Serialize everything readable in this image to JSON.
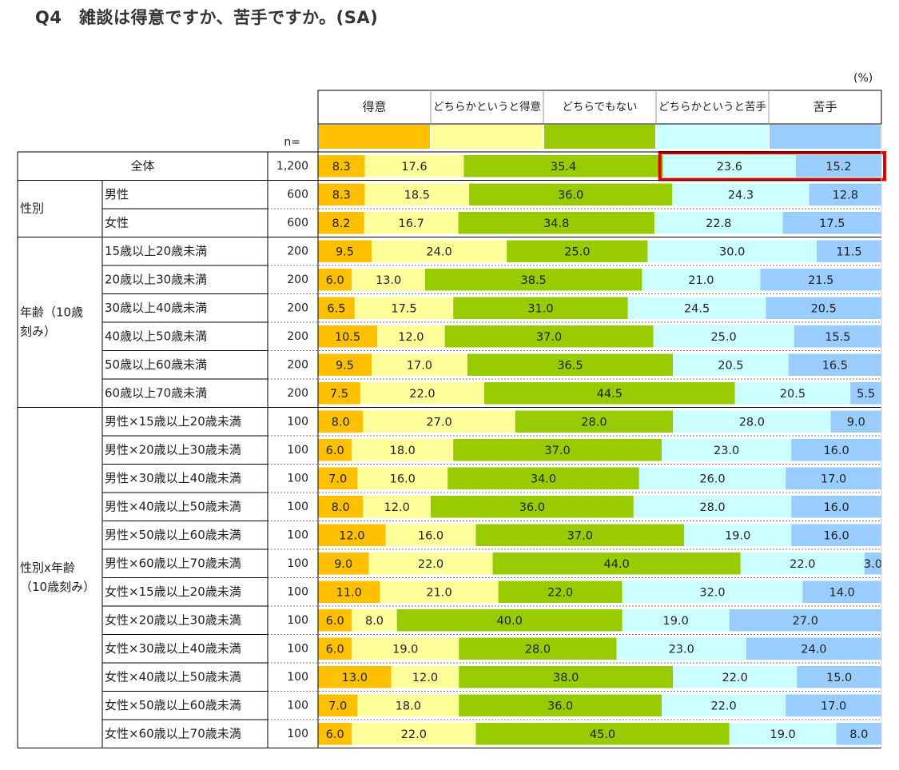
{
  "title": "Q4　雑談は得意ですか、苦手ですか。(SA)",
  "unit": "(%)",
  "n_label": "n=",
  "chart_data": {
    "type": "bar",
    "stacked": true,
    "orientation": "horizontal",
    "title": "Q4　雑談は得意ですか、苦手ですか。(SA)",
    "unit": "(%)",
    "xlim": [
      0,
      100
    ],
    "legend_position": "top",
    "series": [
      {
        "name": "得意",
        "color": "#FFC000"
      },
      {
        "name": "どちらかというと得意",
        "color": "#FFFF99"
      },
      {
        "name": "どちらでもない",
        "color": "#99CC00"
      },
      {
        "name": "どちらかというと苦手",
        "color": "#CCFFFF"
      },
      {
        "name": "苦手",
        "color": "#99CCFF"
      }
    ],
    "groups": [
      {
        "label": "",
        "rows": [
          {
            "label": "全体",
            "n": "1,200",
            "values": [
              8.3,
              17.6,
              35.4,
              23.6,
              15.2
            ],
            "labels": [
              "8.3",
              "17.6",
              "35.4",
              "23.6",
              "15.2"
            ],
            "highlight": true
          }
        ]
      },
      {
        "label": "性別",
        "rows": [
          {
            "label": "男性",
            "n": "600",
            "values": [
              8.3,
              18.5,
              36.0,
              24.3,
              12.8
            ],
            "labels": [
              "8.3",
              "18.5",
              "36.0",
              "24.3",
              "12.8"
            ]
          },
          {
            "label": "女性",
            "n": "600",
            "values": [
              8.2,
              16.7,
              34.8,
              22.8,
              17.5
            ],
            "labels": [
              "8.2",
              "16.7",
              "34.8",
              "22.8",
              "17.5"
            ]
          }
        ]
      },
      {
        "label": "年齢（10歳刻み）",
        "label_lines": [
          "年齢（10歳",
          "刻み）"
        ],
        "rows": [
          {
            "label": "15歳以上20歳未満",
            "n": "200",
            "values": [
              9.5,
              24.0,
              25.0,
              30.0,
              11.5
            ],
            "labels": [
              "9.5",
              "24.0",
              "25.0",
              "30.0",
              "11.5"
            ]
          },
          {
            "label": "20歳以上30歳未満",
            "n": "200",
            "values": [
              6.0,
              13.0,
              38.5,
              21.0,
              21.5
            ],
            "labels": [
              "6.0",
              "13.0",
              "38.5",
              "21.0",
              "21.5"
            ]
          },
          {
            "label": "30歳以上40歳未満",
            "n": "200",
            "values": [
              6.5,
              17.5,
              31.0,
              24.5,
              20.5
            ],
            "labels": [
              "6.5",
              "17.5",
              "31.0",
              "24.5",
              "20.5"
            ]
          },
          {
            "label": "40歳以上50歳未満",
            "n": "200",
            "values": [
              10.5,
              12.0,
              37.0,
              25.0,
              15.5
            ],
            "labels": [
              "10.5",
              "12.0",
              "37.0",
              "25.0",
              "15.5"
            ]
          },
          {
            "label": "50歳以上60歳未満",
            "n": "200",
            "values": [
              9.5,
              17.0,
              36.5,
              20.5,
              16.5
            ],
            "labels": [
              "9.5",
              "17.0",
              "36.5",
              "20.5",
              "16.5"
            ]
          },
          {
            "label": "60歳以上70歳未満",
            "n": "200",
            "values": [
              7.5,
              22.0,
              44.5,
              20.5,
              5.5
            ],
            "labels": [
              "7.5",
              "22.0",
              "44.5",
              "20.5",
              "5.5"
            ]
          }
        ]
      },
      {
        "label": "性別x年齢（10歳刻み）",
        "label_lines": [
          "性別x年齢",
          "（10歳刻み）"
        ],
        "rows": [
          {
            "label": "男性×15歳以上20歳未満",
            "n": "100",
            "values": [
              8.0,
              27.0,
              28.0,
              28.0,
              9.0
            ],
            "labels": [
              "8.0",
              "27.0",
              "28.0",
              "28.0",
              "9.0"
            ]
          },
          {
            "label": "男性×20歳以上30歳未満",
            "n": "100",
            "values": [
              6.0,
              18.0,
              37.0,
              23.0,
              16.0
            ],
            "labels": [
              "6.0",
              "18.0",
              "37.0",
              "23.0",
              "16.0"
            ]
          },
          {
            "label": "男性×30歳以上40歳未満",
            "n": "100",
            "values": [
              7.0,
              16.0,
              34.0,
              26.0,
              17.0
            ],
            "labels": [
              "7.0",
              "16.0",
              "34.0",
              "26.0",
              "17.0"
            ]
          },
          {
            "label": "男性×40歳以上50歳未満",
            "n": "100",
            "values": [
              8.0,
              12.0,
              36.0,
              28.0,
              16.0
            ],
            "labels": [
              "8.0",
              "12.0",
              "36.0",
              "28.0",
              "16.0"
            ]
          },
          {
            "label": "男性×50歳以上60歳未満",
            "n": "100",
            "values": [
              12.0,
              16.0,
              37.0,
              19.0,
              16.0
            ],
            "labels": [
              "12.0",
              "16.0",
              "37.0",
              "19.0",
              "16.0"
            ]
          },
          {
            "label": "男性×60歳以上70歳未満",
            "n": "100",
            "values": [
              9.0,
              22.0,
              44.0,
              22.0,
              3.0
            ],
            "labels": [
              "9.0",
              "22.0",
              "44.0",
              "22.0",
              "3.0"
            ]
          },
          {
            "label": "女性×15歳以上20歳未満",
            "n": "100",
            "values": [
              11.0,
              21.0,
              22.0,
              32.0,
              14.0
            ],
            "labels": [
              "11.0",
              "21.0",
              "22.0",
              "32.0",
              "14.0"
            ]
          },
          {
            "label": "女性×20歳以上30歳未満",
            "n": "100",
            "values": [
              6.0,
              8.0,
              40.0,
              19.0,
              27.0
            ],
            "labels": [
              "6.0",
              "8.0",
              "40.0",
              "19.0",
              "27.0"
            ]
          },
          {
            "label": "女性×30歳以上40歳未満",
            "n": "100",
            "values": [
              6.0,
              19.0,
              28.0,
              23.0,
              24.0
            ],
            "labels": [
              "6.0",
              "19.0",
              "28.0",
              "23.0",
              "24.0"
            ]
          },
          {
            "label": "女性×40歳以上50歳未満",
            "n": "100",
            "values": [
              13.0,
              12.0,
              38.0,
              22.0,
              15.0
            ],
            "labels": [
              "13.0",
              "12.0",
              "38.0",
              "22.0",
              "15.0"
            ]
          },
          {
            "label": "女性×50歳以上60歳未満",
            "n": "100",
            "values": [
              7.0,
              18.0,
              36.0,
              22.0,
              17.0
            ],
            "labels": [
              "7.0",
              "18.0",
              "36.0",
              "22.0",
              "17.0"
            ]
          },
          {
            "label": "女性×60歳以上70歳未満",
            "n": "100",
            "values": [
              6.0,
              22.0,
              45.0,
              19.0,
              8.0
            ],
            "labels": [
              "6.0",
              "22.0",
              "45.0",
              "19.0",
              "8.0"
            ]
          }
        ]
      }
    ],
    "highlight_color": "#E00000"
  }
}
